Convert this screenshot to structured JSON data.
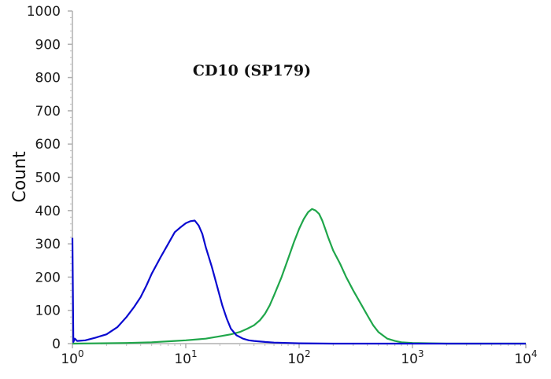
{
  "chart_data": {
    "type": "line",
    "title": "CD10 (SP179)",
    "xlabel": "",
    "ylabel": "Count",
    "x_scale": "log",
    "xlim": [
      1,
      10000
    ],
    "ylim": [
      0,
      1000
    ],
    "x_ticks": [
      {
        "value": 1,
        "base": "10",
        "exp": "0"
      },
      {
        "value": 10,
        "base": "10",
        "exp": "1"
      },
      {
        "value": 100,
        "base": "10",
        "exp": "2"
      },
      {
        "value": 1000,
        "base": "10",
        "exp": "3"
      },
      {
        "value": 10000,
        "base": "10",
        "exp": "4"
      }
    ],
    "y_ticks": [
      "0",
      "100",
      "200",
      "300",
      "400",
      "500",
      "600",
      "700",
      "800",
      "900",
      "1000"
    ],
    "grid": false,
    "legend": "none",
    "series": [
      {
        "color": "#0a0ad0",
        "x": [
          1,
          1.02,
          1.05,
          1.1,
          1.3,
          1.6,
          2,
          2.5,
          3,
          3.5,
          4,
          4.5,
          5,
          6,
          7,
          8,
          9,
          10,
          11,
          12,
          13,
          14,
          15,
          17,
          19,
          21,
          23,
          25,
          28,
          32,
          36,
          40,
          50,
          60,
          80,
          100,
          200,
          500,
          1000,
          10000
        ],
        "y": [
          318,
          5,
          15,
          8,
          10,
          18,
          28,
          50,
          80,
          110,
          140,
          175,
          210,
          260,
          300,
          335,
          350,
          362,
          368,
          370,
          355,
          330,
          290,
          230,
          170,
          115,
          75,
          45,
          25,
          15,
          10,
          8,
          5,
          3,
          2,
          1,
          0,
          0,
          0,
          0
        ]
      },
      {
        "color": "#1fa64a",
        "x": [
          1,
          3,
          5,
          8,
          10,
          15,
          20,
          25,
          30,
          35,
          40,
          45,
          50,
          55,
          60,
          70,
          80,
          90,
          100,
          110,
          120,
          130,
          140,
          150,
          160,
          170,
          180,
          200,
          230,
          260,
          300,
          350,
          400,
          450,
          500,
          600,
          700,
          800,
          1000,
          2000,
          10000
        ],
        "y": [
          0,
          2,
          4,
          8,
          10,
          15,
          22,
          28,
          35,
          45,
          55,
          70,
          90,
          115,
          145,
          200,
          255,
          305,
          345,
          375,
          395,
          405,
          400,
          390,
          370,
          345,
          320,
          280,
          240,
          200,
          160,
          120,
          85,
          55,
          35,
          15,
          8,
          4,
          2,
          0,
          0
        ]
      }
    ]
  }
}
